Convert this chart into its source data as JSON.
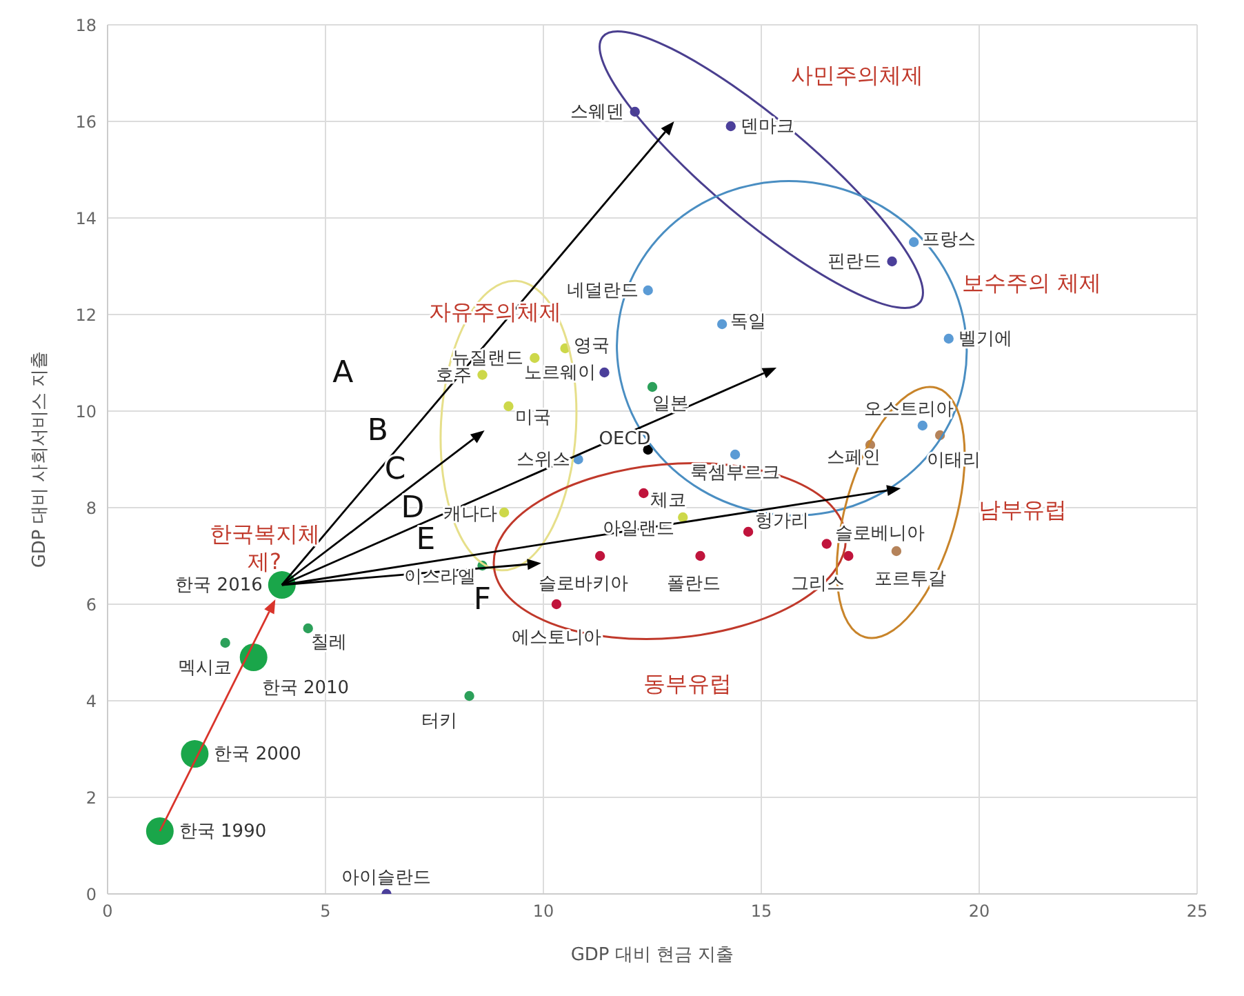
{
  "chart_data": {
    "type": "scatter",
    "xlabel": "GDP 대비 현금 지출",
    "ylabel": "GDP 대비 사회서비스 지출",
    "xlim": [
      0,
      25
    ],
    "xticks": [
      0,
      5,
      10,
      15,
      20,
      25
    ],
    "ylim": [
      0,
      18
    ],
    "yticks": [
      0,
      2,
      4,
      6,
      8,
      10,
      12,
      14,
      16,
      18
    ],
    "grid": true,
    "legend": false,
    "marker": "circle",
    "series": [
      {
        "color": "#4b3f9a",
        "x": [
          12.1,
          14.3,
          18.0,
          11.4,
          6.4
        ],
        "values": [
          16.2,
          15.9,
          13.1,
          10.8,
          0
        ]
      },
      {
        "color": "#5b9bd5",
        "x": [
          12.4,
          14.1,
          18.5,
          19.3,
          10.8,
          14.4,
          18.7
        ],
        "values": [
          12.5,
          11.8,
          13.5,
          11.5,
          9.0,
          9.1,
          9.7
        ]
      },
      {
        "color": "#cdd84a",
        "x": [
          10.5,
          9.8,
          8.6,
          9.2,
          9.1,
          13.2
        ],
        "values": [
          11.3,
          11.1,
          10.75,
          10.1,
          7.9,
          7.8
        ]
      },
      {
        "color": "#c0143c",
        "x": [
          12.3,
          14.7,
          11.3,
          13.6,
          10.3,
          16.5,
          17.0
        ],
        "values": [
          8.3,
          7.5,
          7.0,
          7.0,
          6.0,
          7.25,
          7.0
        ]
      },
      {
        "color": "#b5835a",
        "x": [
          17.5,
          19.1,
          18.1
        ],
        "values": [
          9.3,
          9.5,
          7.1
        ]
      },
      {
        "color": "#2ca05a",
        "x": [
          12.5,
          4.6,
          2.7,
          8.3,
          8.6
        ],
        "values": [
          10.5,
          5.5,
          5.2,
          4.1,
          6.8
        ]
      },
      {
        "color": "#000000",
        "x": [
          12.4
        ],
        "values": [
          9.2
        ]
      },
      {
        "type": "bubble",
        "color": "#1aa64a",
        "x": [
          1.2,
          2.0,
          3.35,
          4.0
        ],
        "values": [
          1.3,
          2.9,
          4.9,
          6.4
        ],
        "sizes": [
          1,
          1,
          1,
          1
        ]
      }
    ],
    "annotations": [
      {
        "text": "스웨덴",
        "x": 12.1,
        "y": 16.2
      },
      {
        "text": "덴마크",
        "x": 14.3,
        "y": 15.9
      },
      {
        "text": "핀란드",
        "x": 18.0,
        "y": 13.1
      },
      {
        "text": "노르웨이",
        "x": 11.4,
        "y": 10.8
      },
      {
        "text": "아이슬란드",
        "x": 6.4,
        "y": 0
      },
      {
        "text": "네덜란드",
        "x": 12.4,
        "y": 12.5
      },
      {
        "text": "독일",
        "x": 14.1,
        "y": 11.8
      },
      {
        "text": "프랑스",
        "x": 18.5,
        "y": 13.5
      },
      {
        "text": "벨기에",
        "x": 19.3,
        "y": 11.5
      },
      {
        "text": "스위스",
        "x": 10.8,
        "y": 9.0
      },
      {
        "text": "룩셈부르크",
        "x": 14.4,
        "y": 9.1
      },
      {
        "text": "오스트리아",
        "x": 18.7,
        "y": 9.7
      },
      {
        "text": "영국",
        "x": 10.5,
        "y": 11.3
      },
      {
        "text": "뉴질랜드",
        "x": 9.8,
        "y": 11.1
      },
      {
        "text": "호주",
        "x": 8.6,
        "y": 10.75
      },
      {
        "text": "미국",
        "x": 9.2,
        "y": 10.1
      },
      {
        "text": "캐나다",
        "x": 9.1,
        "y": 7.9
      },
      {
        "text": "아일랜드",
        "x": 13.2,
        "y": 7.8
      },
      {
        "text": "체코",
        "x": 12.3,
        "y": 8.3
      },
      {
        "text": "헝가리",
        "x": 14.7,
        "y": 7.5
      },
      {
        "text": "슬로바키아",
        "x": 11.3,
        "y": 7.0
      },
      {
        "text": "폴란드",
        "x": 13.6,
        "y": 7.0
      },
      {
        "text": "에스토니아",
        "x": 10.3,
        "y": 6.0
      },
      {
        "text": "슬로베니아",
        "x": 16.5,
        "y": 7.25
      },
      {
        "text": "그리스",
        "x": 17.0,
        "y": 7.0
      },
      {
        "text": "스페인",
        "x": 17.5,
        "y": 9.3
      },
      {
        "text": "이태리",
        "x": 19.1,
        "y": 9.5
      },
      {
        "text": "포르투갈",
        "x": 18.1,
        "y": 7.1
      },
      {
        "text": "일본",
        "x": 12.5,
        "y": 10.5
      },
      {
        "text": "칠레",
        "x": 4.6,
        "y": 5.5
      },
      {
        "text": "멕시코",
        "x": 2.7,
        "y": 5.2
      },
      {
        "text": "터키",
        "x": 8.3,
        "y": 4.1
      },
      {
        "text": "이스라엘",
        "x": 8.6,
        "y": 6.8
      },
      {
        "text": "OECD",
        "x": 12.4,
        "y": 9.2
      },
      {
        "text": "한국 1990",
        "x": 1.2,
        "y": 1.3
      },
      {
        "text": "한국 2000",
        "x": 2.0,
        "y": 2.9
      },
      {
        "text": "한국 2010",
        "x": 3.35,
        "y": 4.9
      },
      {
        "text": "한국 2016",
        "x": 4.0,
        "y": 6.4
      },
      "사민주의체제",
      "보수주의 체제",
      "자유주의체제",
      "동부유럽",
      "남부유럽",
      "한국복지체\n제?",
      "A",
      "B",
      "C",
      "D",
      "E",
      "F"
    ]
  }
}
